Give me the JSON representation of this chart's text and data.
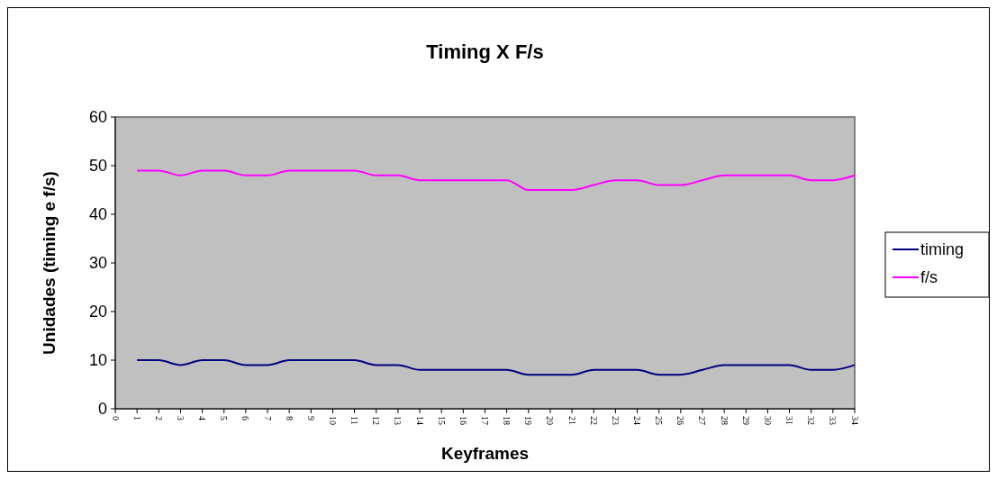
{
  "chart_data": {
    "type": "line",
    "title": "Timing X F/s",
    "xlabel": "Keyframes",
    "ylabel": "Unidades (timing e f/s)",
    "x": [
      1,
      2,
      3,
      4,
      5,
      6,
      7,
      8,
      9,
      10,
      11,
      12,
      13,
      14,
      15,
      16,
      17,
      18,
      19,
      20,
      21,
      22,
      23,
      24,
      25,
      26,
      27,
      28,
      29,
      30,
      31,
      32,
      33,
      34
    ],
    "xlim": [
      0,
      34
    ],
    "xticks": [
      0,
      1,
      2,
      3,
      4,
      5,
      6,
      7,
      8,
      9,
      10,
      11,
      12,
      13,
      14,
      15,
      16,
      17,
      18,
      19,
      20,
      21,
      22,
      23,
      24,
      25,
      26,
      27,
      28,
      29,
      30,
      31,
      32,
      33,
      34
    ],
    "ylim": [
      0,
      60
    ],
    "yticks": [
      0,
      10,
      20,
      30,
      40,
      50,
      60
    ],
    "series": [
      {
        "name": "timing",
        "color": "#000080",
        "values": [
          10,
          10,
          9,
          10,
          10,
          9,
          9,
          10,
          10,
          10,
          10,
          9,
          9,
          8,
          8,
          8,
          8,
          8,
          7,
          7,
          7,
          8,
          8,
          8,
          7,
          7,
          8,
          9,
          9,
          9,
          9,
          8,
          8,
          9
        ]
      },
      {
        "name": "f/s",
        "color": "#ff00ff",
        "values": [
          49,
          49,
          48,
          49,
          49,
          48,
          48,
          49,
          49,
          49,
          49,
          48,
          48,
          47,
          47,
          47,
          47,
          47,
          45,
          45,
          45,
          46,
          47,
          47,
          46,
          46,
          47,
          48,
          48,
          48,
          48,
          47,
          47,
          48
        ]
      }
    ],
    "grid": false,
    "legend": "right",
    "marker": "none",
    "line_style": "solid"
  }
}
